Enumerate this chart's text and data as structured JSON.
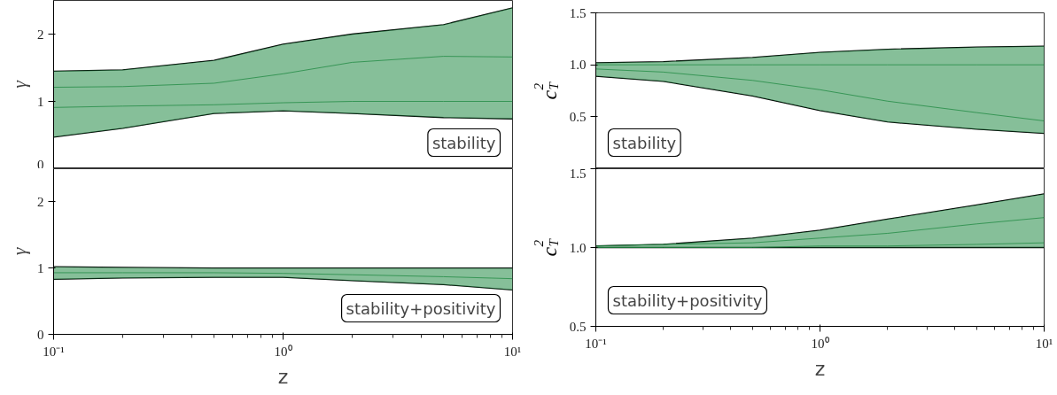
{
  "chart_data": [
    {
      "type": "line",
      "ylabel": "γ",
      "log": "x",
      "grid": false,
      "tick_labels": "y",
      "xlim": [
        0.1,
        10
      ],
      "ylim": [
        0,
        2.5
      ],
      "yticks": [
        0,
        1,
        2
      ],
      "x": [
        0.1,
        0.2,
        0.5,
        1,
        2,
        5,
        10
      ],
      "annotations": [
        "stability"
      ],
      "series": [
        {
          "color": "#000000",
          "values": [
            1.45,
            1.47,
            1.61,
            1.85,
            2.0,
            2.14,
            2.39
          ]
        },
        {
          "color": "#000000",
          "values": [
            0.47,
            0.6,
            0.82,
            0.86,
            0.82,
            0.76,
            0.74
          ]
        },
        {
          "color": "#238b45",
          "values": [
            1.21,
            1.22,
            1.27,
            1.41,
            1.58,
            1.67,
            1.66
          ],
          "lower": [
            0.47,
            0.6,
            0.82,
            0.86,
            0.82,
            0.76,
            0.74
          ],
          "upper": [
            1.45,
            1.47,
            1.61,
            1.85,
            2.0,
            2.14,
            2.39
          ]
        },
        {
          "color": "#238b45",
          "values": [
            0.91,
            0.93,
            0.95,
            0.98,
            1.0,
            1.0,
            1.0
          ]
        }
      ]
    },
    {
      "type": "line",
      "ylabel": "γ",
      "xlabel": "z",
      "log": "x",
      "grid": false,
      "xlim": [
        0.1,
        10
      ],
      "xticks": [
        {
          "value": 0.1,
          "label": "10⁻¹"
        },
        {
          "value": 1,
          "label": "10⁰"
        },
        {
          "value": 10,
          "label": "10¹"
        }
      ],
      "ylim": [
        0,
        2.5
      ],
      "yticks": [
        0,
        1,
        2
      ],
      "x": [
        0.1,
        0.2,
        0.5,
        1,
        2,
        5,
        10
      ],
      "annotations": [
        "stability+positivity"
      ],
      "series": [
        {
          "color": "#000000",
          "values": [
            1.02,
            1.01,
            1.0,
            1.0,
            1.0,
            1.0,
            1.0
          ]
        },
        {
          "color": "#000000",
          "values": [
            0.83,
            0.85,
            0.86,
            0.86,
            0.81,
            0.75,
            0.67
          ]
        },
        {
          "color": "#238b45",
          "values": [
            0.93,
            0.93,
            0.93,
            0.92,
            0.9,
            0.87,
            0.84
          ],
          "lower": [
            0.83,
            0.85,
            0.86,
            0.86,
            0.81,
            0.75,
            0.67
          ],
          "upper": [
            1.02,
            1.01,
            1.0,
            1.0,
            1.0,
            1.0,
            1.0
          ]
        }
      ]
    },
    {
      "type": "line",
      "ylabel": "c$_{T}$$^{2}$",
      "log": "x",
      "grid": false,
      "tick_labels": "y",
      "xlim": [
        0.1,
        10
      ],
      "ylim": [
        0,
        1.5
      ],
      "yticks": [
        0.5,
        {
          "value": 1,
          "label": "1.0"
        },
        1.5
      ],
      "x": [
        0.1,
        0.2,
        0.5,
        1,
        2,
        5,
        10
      ],
      "annotations": [
        "stability"
      ],
      "series": [
        {
          "color": "#000000",
          "values": [
            1.02,
            1.03,
            1.07,
            1.12,
            1.15,
            1.17,
            1.18
          ]
        },
        {
          "color": "#000000",
          "values": [
            0.89,
            0.84,
            0.7,
            0.56,
            0.45,
            0.38,
            0.34
          ]
        },
        {
          "color": "#238b45",
          "values": [
            0.96,
            0.93,
            0.85,
            0.76,
            0.65,
            0.54,
            0.46
          ],
          "lower": [
            0.89,
            0.84,
            0.7,
            0.56,
            0.45,
            0.38,
            0.34
          ],
          "upper": [
            1.02,
            1.03,
            1.07,
            1.12,
            1.15,
            1.17,
            1.18
          ]
        },
        {
          "color": "#238b45",
          "values": [
            1.0,
            1.0,
            1.0,
            1.0,
            1.0,
            1.0,
            1.0
          ]
        }
      ]
    },
    {
      "type": "line",
      "ylabel": "c$_{T}$$^{2}$",
      "xlabel": "z",
      "log": "x",
      "grid": false,
      "xlim": [
        0.1,
        10
      ],
      "xticks": [
        {
          "value": 0.1,
          "label": "10⁻¹"
        },
        {
          "value": 1,
          "label": "10⁰"
        },
        {
          "value": 10,
          "label": "10¹"
        }
      ],
      "ylim": [
        0.5,
        1.5
      ],
      "yticks": [
        0.5,
        {
          "value": 1,
          "label": "1.0"
        },
        1.5
      ],
      "x": [
        0.1,
        0.2,
        0.5,
        1,
        2,
        5,
        10
      ],
      "annotations": [
        "stability+positivity"
      ],
      "series": [
        {
          "color": "#000000",
          "values": [
            1.01,
            1.02,
            1.06,
            1.11,
            1.18,
            1.27,
            1.34
          ]
        },
        {
          "color": "#000000",
          "values": [
            1.0,
            1.0,
            1.0,
            1.0,
            1.0,
            1.0,
            1.0
          ]
        },
        {
          "color": "#238b45",
          "values": [
            1.01,
            1.02,
            1.03,
            1.06,
            1.09,
            1.15,
            1.19
          ],
          "lower": [
            1.0,
            1.0,
            1.0,
            1.0,
            1.0,
            1.0,
            1.0
          ],
          "upper": [
            1.01,
            1.02,
            1.06,
            1.11,
            1.18,
            1.27,
            1.34
          ]
        },
        {
          "color": "#238b45",
          "values": [
            1.0,
            1.0,
            1.0,
            1.01,
            1.01,
            1.02,
            1.03
          ]
        }
      ]
    }
  ]
}
